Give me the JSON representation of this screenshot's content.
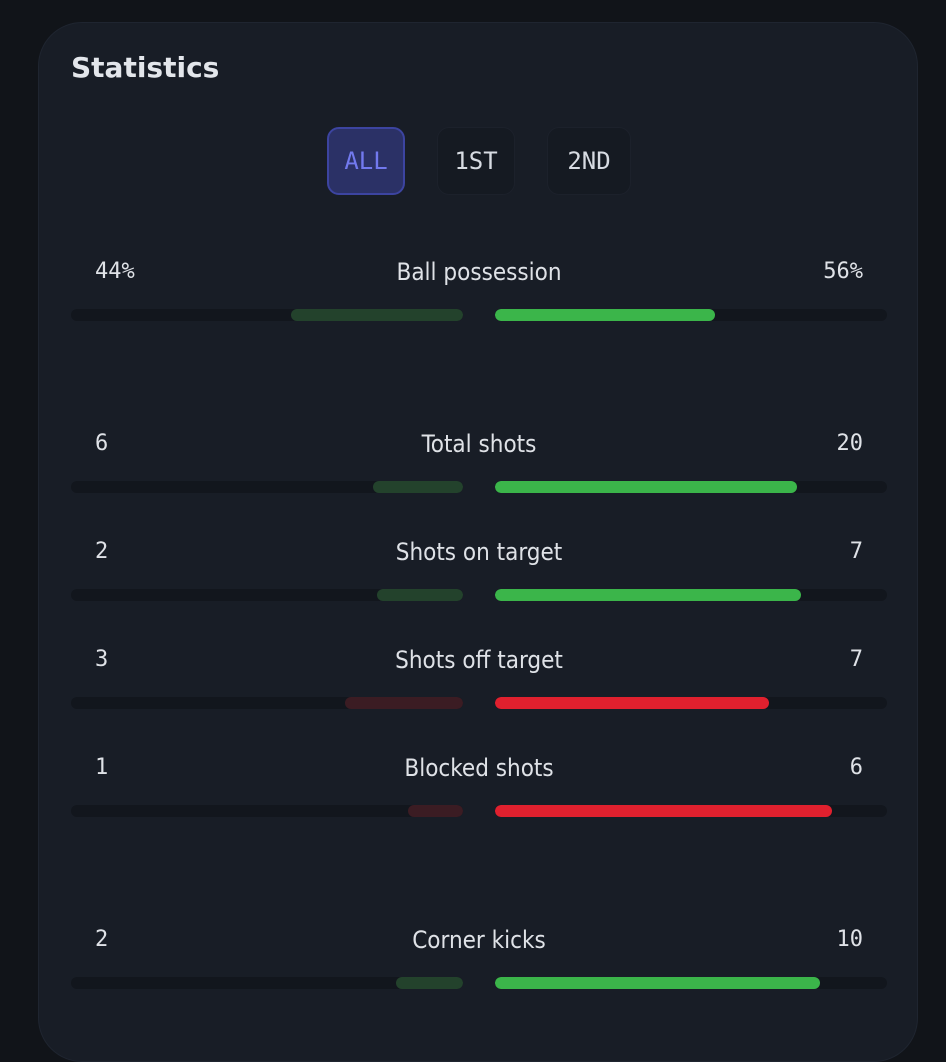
{
  "title": "Statistics",
  "tabs": [
    {
      "label": "ALL",
      "active": true
    },
    {
      "label": "1ST",
      "active": false
    },
    {
      "label": "2ND",
      "active": false
    }
  ],
  "colors": {
    "green": "#3bb54a",
    "green_dim": "#23422c",
    "red": "#e0202e",
    "red_dim": "#3b1c23"
  },
  "stats": [
    {
      "label": "Ball possession",
      "home": "44%",
      "away": "56%",
      "home_fraction": 0.44,
      "away_fraction": 0.56,
      "color": "green"
    },
    {
      "label": "Total shots",
      "home": "6",
      "away": "20",
      "home_fraction": 0.23,
      "away_fraction": 0.77,
      "color": "green"
    },
    {
      "label": "Shots on target",
      "home": "2",
      "away": "7",
      "home_fraction": 0.22,
      "away_fraction": 0.78,
      "color": "green"
    },
    {
      "label": "Shots off target",
      "home": "3",
      "away": "7",
      "home_fraction": 0.3,
      "away_fraction": 0.7,
      "color": "red"
    },
    {
      "label": "Blocked shots",
      "home": "1",
      "away": "6",
      "home_fraction": 0.14,
      "away_fraction": 0.86,
      "color": "red"
    },
    {
      "label": "Corner kicks",
      "home": "2",
      "away": "10",
      "home_fraction": 0.17,
      "away_fraction": 0.83,
      "color": "green"
    }
  ]
}
